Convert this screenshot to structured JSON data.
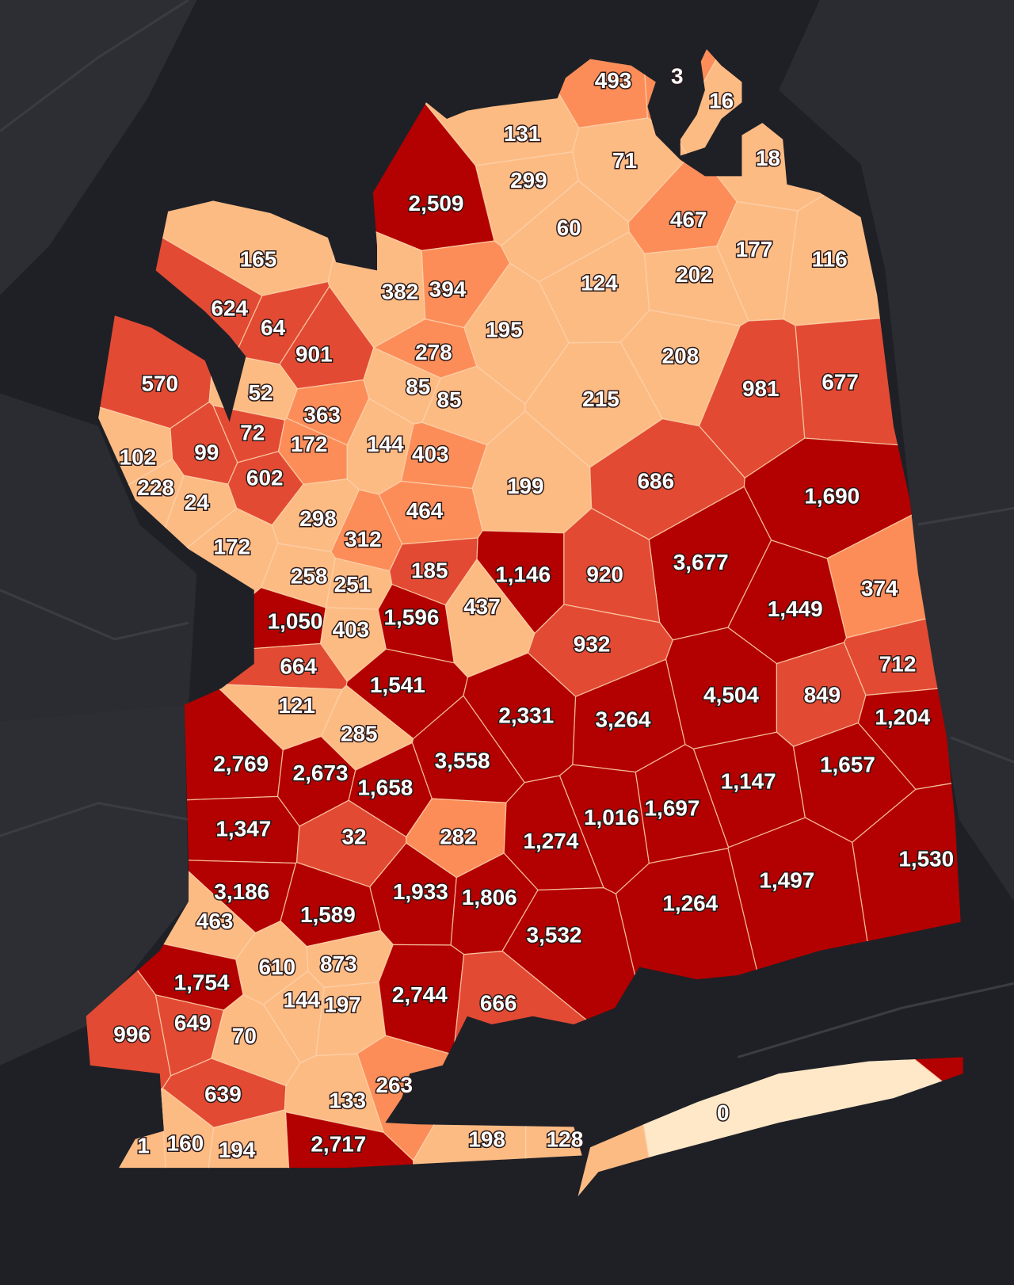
{
  "regions": [
    {
      "label": "493",
      "color": "#fc8d59"
    },
    {
      "label": "3",
      "color": "#fc8d59"
    },
    {
      "label": "16",
      "color": "#fdbb84"
    },
    {
      "label": "131",
      "color": "#fdbb84"
    },
    {
      "label": "71",
      "color": "#fdbb84"
    },
    {
      "label": "18",
      "color": "#fdbb84"
    },
    {
      "label": "299",
      "color": "#fdbb84"
    },
    {
      "label": "2,509",
      "color": "#b30000"
    },
    {
      "label": "60",
      "color": "#fdbb84"
    },
    {
      "label": "467",
      "color": "#fc8d59"
    },
    {
      "label": "165",
      "color": "#fdbb84"
    },
    {
      "label": "177",
      "color": "#fdbb84"
    },
    {
      "label": "116",
      "color": "#fdbb84"
    },
    {
      "label": "124",
      "color": "#fdbb84"
    },
    {
      "label": "202",
      "color": "#fdbb84"
    },
    {
      "label": "382",
      "color": "#fdbb84"
    },
    {
      "label": "394",
      "color": "#fc8d59"
    },
    {
      "label": "624",
      "color": "#e34a33"
    },
    {
      "label": "64",
      "color": "#e34a33"
    },
    {
      "label": "901",
      "color": "#e34a33"
    },
    {
      "label": "195",
      "color": "#fdbb84"
    },
    {
      "label": "278",
      "color": "#fc8d59"
    },
    {
      "label": "208",
      "color": "#fdbb84"
    },
    {
      "label": "570",
      "color": "#e34a33"
    },
    {
      "label": "52",
      "color": "#fdbb84"
    },
    {
      "label": "85",
      "color": "#fdbb84"
    },
    {
      "label": "85",
      "color": "#fdbb84"
    },
    {
      "label": "215",
      "color": "#fdbb84"
    },
    {
      "label": "981",
      "color": "#e34a33"
    },
    {
      "label": "677",
      "color": "#e34a33"
    },
    {
      "label": "363",
      "color": "#fc8d59"
    },
    {
      "label": "72",
      "color": "#e34a33"
    },
    {
      "label": "172",
      "color": "#fc8d59"
    },
    {
      "label": "144",
      "color": "#fdbb84"
    },
    {
      "label": "403",
      "color": "#fc8d59"
    },
    {
      "label": "99",
      "color": "#e34a33"
    },
    {
      "label": "102",
      "color": "#fdbb84"
    },
    {
      "label": "228",
      "color": "#fdbb84"
    },
    {
      "label": "24",
      "color": "#fdbb84"
    },
    {
      "label": "602",
      "color": "#e34a33"
    },
    {
      "label": "199",
      "color": "#fdbb84"
    },
    {
      "label": "686",
      "color": "#e34a33"
    },
    {
      "label": "1,690",
      "color": "#b30000"
    },
    {
      "label": "298",
      "color": "#fdbb84"
    },
    {
      "label": "464",
      "color": "#fc8d59"
    },
    {
      "label": "312",
      "color": "#fc8d59"
    },
    {
      "label": "172",
      "color": "#fdbb84"
    },
    {
      "label": "3,677",
      "color": "#b30000"
    },
    {
      "label": "374",
      "color": "#fc8d59"
    },
    {
      "label": "258",
      "color": "#fdbb84"
    },
    {
      "label": "251",
      "color": "#fdbb84"
    },
    {
      "label": "185",
      "color": "#e34a33"
    },
    {
      "label": "1,146",
      "color": "#b30000"
    },
    {
      "label": "920",
      "color": "#e34a33"
    },
    {
      "label": "1,449",
      "color": "#b30000"
    },
    {
      "label": "1,050",
      "color": "#b30000"
    },
    {
      "label": "403",
      "color": "#fdbb84"
    },
    {
      "label": "1,596",
      "color": "#b30000"
    },
    {
      "label": "437",
      "color": "#fdbb84"
    },
    {
      "label": "932",
      "color": "#e34a33"
    },
    {
      "label": "712",
      "color": "#e34a33"
    },
    {
      "label": "664",
      "color": "#e34a33"
    },
    {
      "label": "1,541",
      "color": "#b30000"
    },
    {
      "label": "4,504",
      "color": "#b30000"
    },
    {
      "label": "849",
      "color": "#e34a33"
    },
    {
      "label": "121",
      "color": "#fdbb84"
    },
    {
      "label": "2,331",
      "color": "#b30000"
    },
    {
      "label": "3,264",
      "color": "#b30000"
    },
    {
      "label": "1,204",
      "color": "#b30000"
    },
    {
      "label": "285",
      "color": "#fdbb84"
    },
    {
      "label": "2,769",
      "color": "#b30000"
    },
    {
      "label": "2,673",
      "color": "#b30000"
    },
    {
      "label": "3,558",
      "color": "#b30000"
    },
    {
      "label": "1,658",
      "color": "#b30000"
    },
    {
      "label": "1,147",
      "color": "#b30000"
    },
    {
      "label": "1,657",
      "color": "#b30000"
    },
    {
      "label": "1,347",
      "color": "#b30000"
    },
    {
      "label": "32",
      "color": "#e34a33"
    },
    {
      "label": "282",
      "color": "#fc8d59"
    },
    {
      "label": "1,016",
      "color": "#b30000"
    },
    {
      "label": "1,697",
      "color": "#b30000"
    },
    {
      "label": "1,274",
      "color": "#b30000"
    },
    {
      "label": "1,530",
      "color": "#b30000"
    },
    {
      "label": "3,186",
      "color": "#b30000"
    },
    {
      "label": "1,933",
      "color": "#b30000"
    },
    {
      "label": "1,806",
      "color": "#b30000"
    },
    {
      "label": "1,497",
      "color": "#b30000"
    },
    {
      "label": "1,589",
      "color": "#b30000"
    },
    {
      "label": "463",
      "color": "#fdbb84"
    },
    {
      "label": "1,264",
      "color": "#b30000"
    },
    {
      "label": "3,532",
      "color": "#b30000"
    },
    {
      "label": "610",
      "color": "#fdbb84"
    },
    {
      "label": "873",
      "color": "#fdbb84"
    },
    {
      "label": "1,754",
      "color": "#b30000"
    },
    {
      "label": "144",
      "color": "#fdbb84"
    },
    {
      "label": "197",
      "color": "#fdbb84"
    },
    {
      "label": "2,744",
      "color": "#b30000"
    },
    {
      "label": "666",
      "color": "#e34a33"
    },
    {
      "label": "996",
      "color": "#e34a33"
    },
    {
      "label": "649",
      "color": "#e34a33"
    },
    {
      "label": "70",
      "color": "#fdbb84"
    },
    {
      "label": "639",
      "color": "#e34a33"
    },
    {
      "label": "263",
      "color": "#fc8d59"
    },
    {
      "label": "133",
      "color": "#fdbb84"
    },
    {
      "label": "0",
      "color": "#fee8c8"
    },
    {
      "label": "1",
      "color": "#fdbb84"
    },
    {
      "label": "160",
      "color": "#fdbb84"
    },
    {
      "label": "194",
      "color": "#fdbb84"
    },
    {
      "label": "2,717",
      "color": "#b30000"
    },
    {
      "label": "198",
      "color": "#fdbb84"
    },
    {
      "label": "128",
      "color": "#fdbb84"
    }
  ]
}
